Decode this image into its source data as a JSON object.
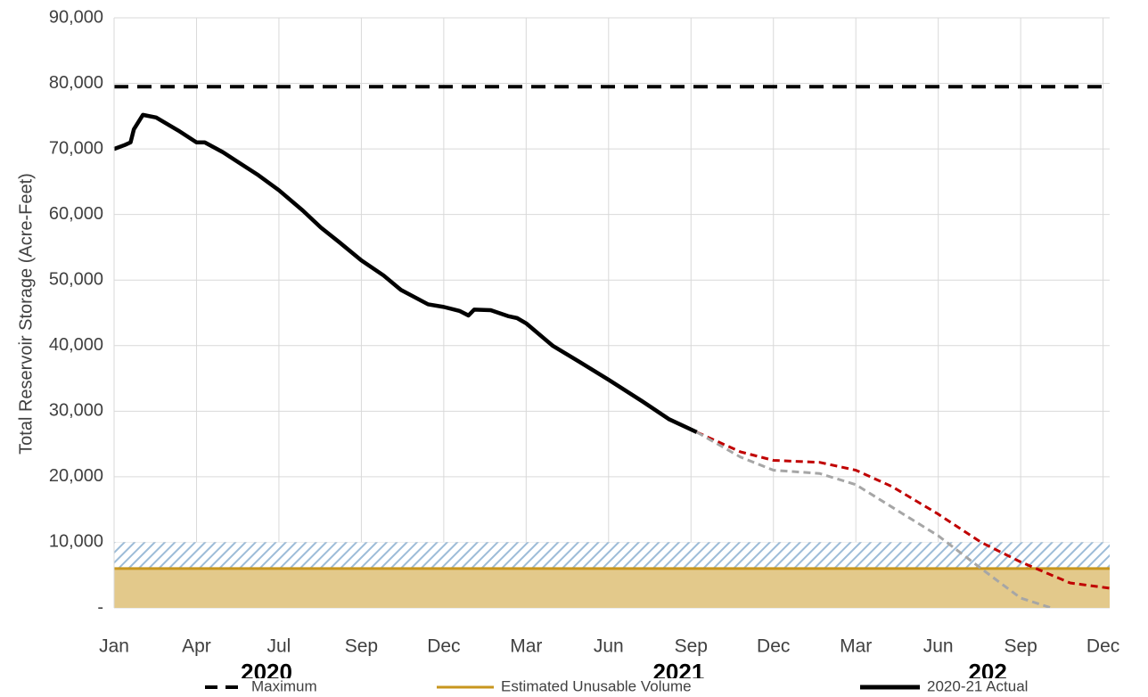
{
  "chart_data": {
    "type": "line",
    "y_axis_label": "Total Reservoir Storage (Acre-Feet)",
    "xlim": [
      0,
      12.08
    ],
    "xticks": [
      {
        "value": 0,
        "label": "Jan"
      },
      {
        "value": 1,
        "label": "Apr"
      },
      {
        "value": 2,
        "label": "Jul"
      },
      {
        "value": 3,
        "label": "Sep"
      },
      {
        "value": 4,
        "label": "Dec"
      },
      {
        "value": 5,
        "label": "Mar"
      },
      {
        "value": 6,
        "label": "Jun"
      },
      {
        "value": 7,
        "label": "Sep"
      },
      {
        "value": 8,
        "label": "Dec"
      },
      {
        "value": 9,
        "label": "Mar"
      },
      {
        "value": 10,
        "label": "Jun"
      },
      {
        "value": 11,
        "label": "Sep"
      },
      {
        "value": 12,
        "label": "Dec"
      }
    ],
    "year_labels": [
      {
        "value": 1.85,
        "label": "2020"
      },
      {
        "value": 6.85,
        "label": "2021"
      },
      {
        "value": 10.6,
        "label": "202"
      }
    ],
    "ylim": [
      0,
      90000
    ],
    "yticks": [
      {
        "value": 0,
        "label": "-"
      },
      {
        "value": 10000,
        "label": "10,000"
      },
      {
        "value": 20000,
        "label": "20,000"
      },
      {
        "value": 30000,
        "label": "30,000"
      },
      {
        "value": 40000,
        "label": "40,000"
      },
      {
        "value": 50000,
        "label": "50,000"
      },
      {
        "value": 60000,
        "label": "60,000"
      },
      {
        "value": 70000,
        "label": "70,000"
      },
      {
        "value": 80000,
        "label": "80,000"
      },
      {
        "value": 90000,
        "label": "90,000"
      }
    ],
    "grid": true,
    "hatched_band": {
      "from": 6000,
      "to": 10000,
      "color": "#9dbcd8"
    },
    "series": [
      {
        "name": "Maximum",
        "color": "#000000",
        "style": "dashed",
        "value": 79500
      },
      {
        "name": "Estimated Unusable Volume",
        "color": "#c8961e",
        "fill": "#e3c98b",
        "style": "solid",
        "value": 6000
      },
      {
        "name": "2020-21 Actual",
        "color": "#000000",
        "style": "solid",
        "x": [
          0,
          0.13,
          0.2,
          0.24,
          0.35,
          0.51,
          0.78,
          1.0,
          1.1,
          1.32,
          1.48,
          1.75,
          2.0,
          2.29,
          2.51,
          2.73,
          3.0,
          3.27,
          3.48,
          3.81,
          4.0,
          4.19,
          4.3,
          4.37,
          4.57,
          4.78,
          4.89,
          5.0,
          5.32,
          5.65,
          6.0,
          6.41,
          6.73,
          7.07
        ],
        "values": [
          70000,
          70600,
          71000,
          73000,
          75200,
          74800,
          72800,
          71000,
          71000,
          69500,
          68200,
          66000,
          63700,
          60600,
          58000,
          55800,
          53000,
          50700,
          48500,
          46300,
          45900,
          45300,
          44600,
          45500,
          45400,
          44500,
          44200,
          43400,
          40000,
          37500,
          34800,
          31500,
          28800,
          26800
        ]
      }
    ],
    "projections": [
      {
        "color": "#c00000",
        "x": [
          7.07,
          7.6,
          8.0,
          8.56,
          9.0,
          9.44,
          10.0,
          10.52,
          11.0,
          11.6,
          12.08
        ],
        "values": [
          26800,
          23800,
          22500,
          22200,
          21000,
          18500,
          14300,
          10000,
          7000,
          3800,
          3000
        ]
      },
      {
        "color": "#a6a6a6",
        "x": [
          7.07,
          7.6,
          8.0,
          8.56,
          9.0,
          9.55,
          10.0,
          10.52,
          11.0,
          11.37
        ],
        "values": [
          26800,
          23000,
          21000,
          20500,
          18800,
          14500,
          11000,
          6000,
          1500,
          0
        ]
      }
    ]
  }
}
